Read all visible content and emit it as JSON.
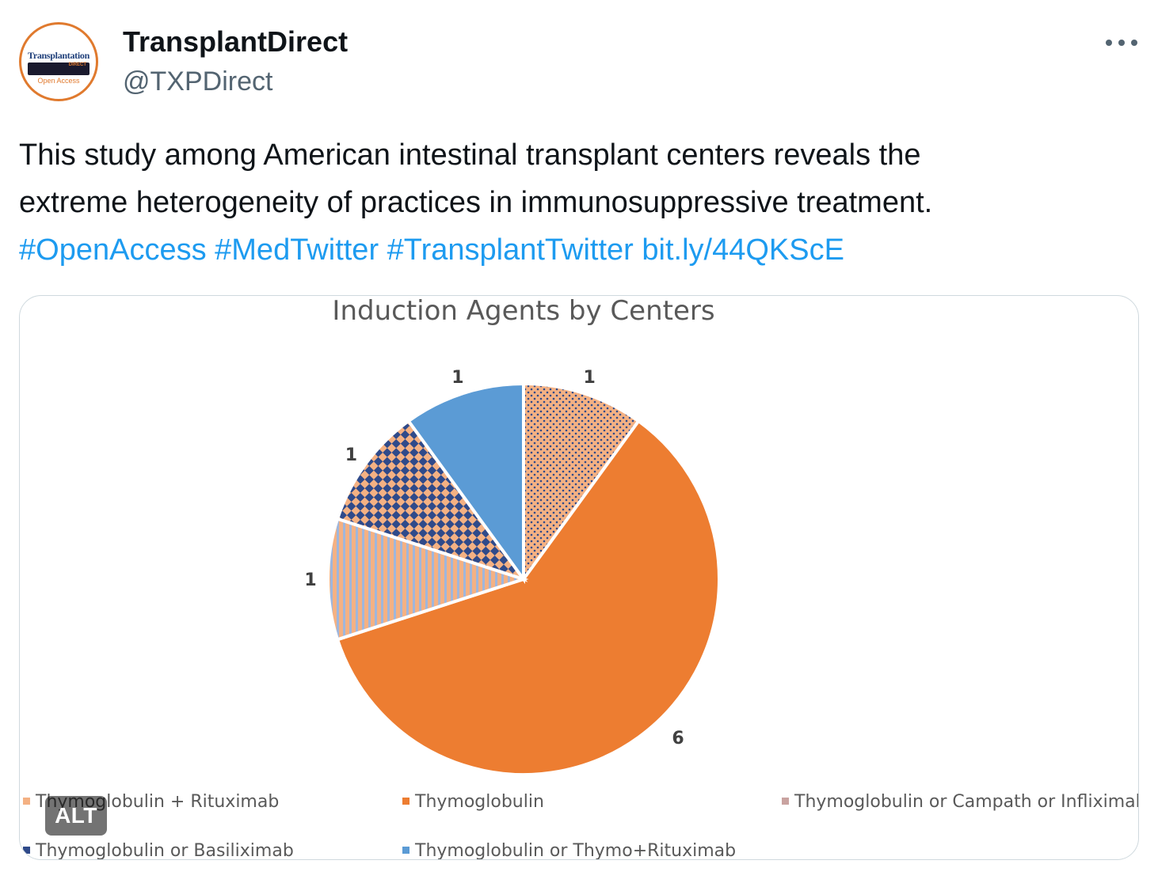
{
  "tweet": {
    "author": {
      "display_name": "TransplantDirect",
      "handle": "@TXPDirect",
      "avatar": {
        "brand_text": "Transplantation",
        "sub_text": "DIRECT",
        "open_access_text": "Open Access"
      }
    },
    "more_icon": "more-horizontal-icon",
    "text": {
      "line1": "This study among American intestinal transplant centers reveals the",
      "line2": "extreme heterogeneity of practices in immunosuppressive treatment.",
      "hashtags": [
        "#OpenAccess",
        "#MedTwitter",
        "#TransplantTwitter"
      ],
      "link": "bit.ly/44QKScE"
    },
    "media": {
      "alt_badge": "ALT"
    }
  },
  "colors": {
    "link": "#1d9bf0",
    "orange": "#ed7d31",
    "blue": "#5b9bd5",
    "navy": "#2f4a8a",
    "peach": "#f4b183"
  },
  "chart_data": {
    "type": "pie",
    "title": "Induction Agents by Centers",
    "slices": [
      {
        "label": "Thymoglobulin + Rituximab",
        "value": 1,
        "fill": "dots"
      },
      {
        "label": "Thymoglobulin",
        "value": 6,
        "fill": "solid-orange"
      },
      {
        "label": "Thymoglobulin or Campath or Infliximab",
        "value": 1,
        "fill": "stripes"
      },
      {
        "label": "Thymoglobulin or Basiliximab",
        "value": 1,
        "fill": "checker"
      },
      {
        "label": "Thymoglobulin or Thymo+Rituximab",
        "value": 1,
        "fill": "solid-blue"
      }
    ],
    "legend_position": "bottom"
  }
}
